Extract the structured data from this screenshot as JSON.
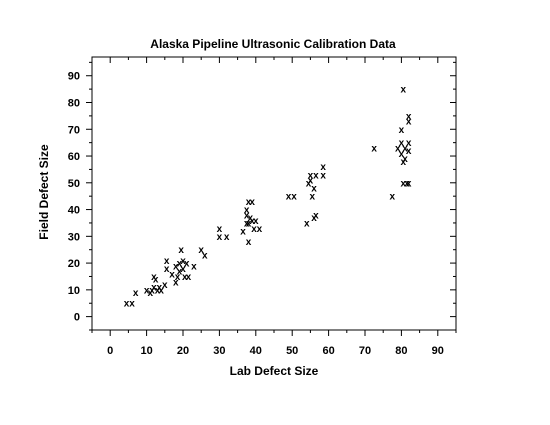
{
  "chart_data": {
    "type": "scatter",
    "title": "Alaska Pipeline Ultrasonic Calibration Data",
    "xlabel": "Lab Defect Size",
    "ylabel": "Field Defect Size",
    "xlim": [
      -5,
      95
    ],
    "ylim": [
      -5,
      97
    ],
    "x_ticks": [
      0,
      10,
      20,
      30,
      40,
      50,
      60,
      70,
      80,
      90
    ],
    "y_ticks": [
      0,
      10,
      20,
      30,
      40,
      50,
      60,
      70,
      80,
      90
    ],
    "x_tick_labels": [
      "0",
      "10",
      "20",
      "30",
      "40",
      "50",
      "60",
      "70",
      "80",
      "90"
    ],
    "y_tick_labels": [
      "0",
      "10",
      "20",
      "30",
      "40",
      "50",
      "60",
      "70",
      "80",
      "90"
    ],
    "marker": "x",
    "grid": false,
    "points": [
      [
        4.5,
        5
      ],
      [
        6,
        5
      ],
      [
        7,
        9
      ],
      [
        10,
        10
      ],
      [
        11,
        9
      ],
      [
        11.5,
        10
      ],
      [
        12,
        11
      ],
      [
        12,
        15
      ],
      [
        12.5,
        14
      ],
      [
        13,
        10
      ],
      [
        13.5,
        11
      ],
      [
        14,
        10
      ],
      [
        15,
        12
      ],
      [
        15.5,
        18
      ],
      [
        15.5,
        21
      ],
      [
        17,
        16
      ],
      [
        18,
        19
      ],
      [
        18,
        13
      ],
      [
        18.5,
        15
      ],
      [
        19,
        20
      ],
      [
        19,
        17
      ],
      [
        19.5,
        25
      ],
      [
        20,
        21
      ],
      [
        20,
        18
      ],
      [
        20.5,
        15
      ],
      [
        21,
        20
      ],
      [
        21.5,
        15
      ],
      [
        23,
        19
      ],
      [
        25,
        25
      ],
      [
        26,
        23
      ],
      [
        30,
        33
      ],
      [
        30,
        30
      ],
      [
        32,
        30
      ],
      [
        36.5,
        32
      ],
      [
        37.5,
        38
      ],
      [
        37.5,
        40
      ],
      [
        37.5,
        35
      ],
      [
        38,
        43
      ],
      [
        38,
        35
      ],
      [
        38,
        28
      ],
      [
        38.5,
        37
      ],
      [
        39,
        43
      ],
      [
        39,
        36
      ],
      [
        39.5,
        33
      ],
      [
        40,
        36
      ],
      [
        41,
        33
      ],
      [
        49,
        45
      ],
      [
        50.5,
        45
      ],
      [
        54,
        35
      ],
      [
        54.5,
        50
      ],
      [
        55,
        53
      ],
      [
        55,
        51
      ],
      [
        55.5,
        45
      ],
      [
        56,
        48
      ],
      [
        56,
        37
      ],
      [
        56.5,
        53
      ],
      [
        56.5,
        38
      ],
      [
        58.5,
        56
      ],
      [
        58.5,
        53
      ],
      [
        72.5,
        63
      ],
      [
        77.5,
        45
      ],
      [
        79,
        63
      ],
      [
        80,
        70
      ],
      [
        80,
        65
      ],
      [
        80,
        61
      ],
      [
        80.5,
        85
      ],
      [
        80.5,
        58
      ],
      [
        80.5,
        50
      ],
      [
        81,
        63
      ],
      [
        81,
        59
      ],
      [
        81.5,
        50
      ],
      [
        82,
        75
      ],
      [
        82,
        73
      ],
      [
        82,
        65
      ],
      [
        82,
        62
      ],
      [
        82,
        50
      ]
    ]
  }
}
